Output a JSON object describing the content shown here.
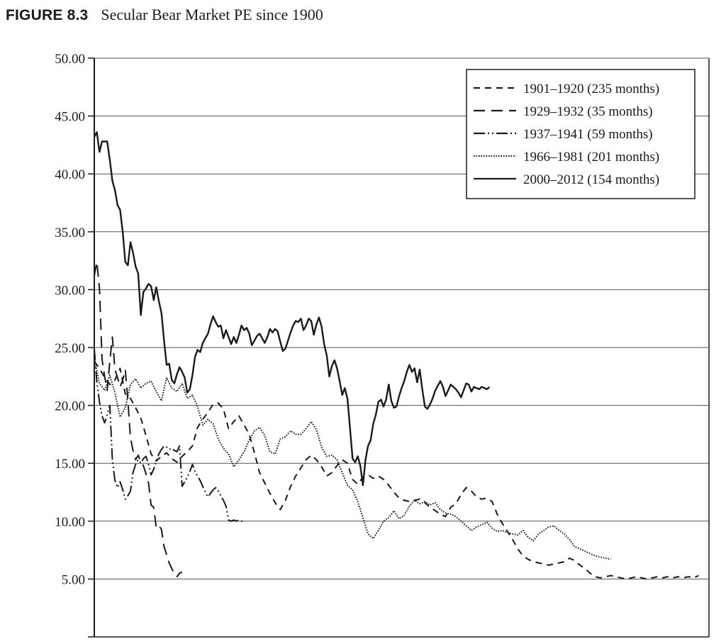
{
  "figure": {
    "label": "FIGURE 8.3",
    "caption": "Secular Bear Market PE since 1900"
  },
  "chart_data": {
    "type": "line",
    "title": "Secular Bear Market PE since 1900",
    "xlabel": "",
    "ylabel": "",
    "xlim": [
      0,
      238
    ],
    "ylim": [
      0,
      50
    ],
    "yticks": [
      0,
      5,
      10,
      15,
      20,
      25,
      30,
      35,
      40,
      45,
      50
    ],
    "ytick_labels": [
      "",
      "5.00",
      "10.00",
      "15.00",
      "20.00",
      "25.00",
      "30.00",
      "35.00",
      "40.00",
      "45.00",
      "50.00"
    ],
    "grid": "horizontal",
    "legend_position": "top-right",
    "series": [
      {
        "name": "1901–1920 (235 months)",
        "style": "dash",
        "x": [
          0,
          2,
          4,
          6,
          8,
          10,
          12,
          14,
          16,
          18,
          20,
          22,
          24,
          26,
          28,
          30,
          32,
          34,
          36,
          38,
          40,
          42,
          44,
          46,
          48,
          50,
          52,
          54,
          56,
          58,
          60,
          62,
          64,
          66,
          68,
          70,
          72,
          74,
          76,
          78,
          80,
          82,
          84,
          86,
          88,
          90,
          92,
          94,
          96,
          98,
          100,
          102,
          104,
          106,
          108,
          110,
          112,
          114,
          116,
          118,
          120,
          122,
          124,
          126,
          128,
          130,
          132,
          134,
          136,
          138,
          140,
          142,
          144,
          146,
          148,
          150,
          152,
          154,
          156,
          158,
          160,
          162,
          164,
          166,
          168,
          170,
          172,
          174,
          176,
          178,
          180,
          182,
          184,
          186,
          188,
          190,
          192,
          194,
          196,
          198,
          200,
          202,
          204,
          206,
          208,
          210,
          212,
          214,
          216,
          218,
          220,
          222,
          224,
          226,
          228,
          230,
          232,
          234
        ],
        "values": [
          23.8,
          23.2,
          22.4,
          21.8,
          22.2,
          23.2,
          21.0,
          20.6,
          19.8,
          18.9,
          17.4,
          15.8,
          15.2,
          15.6,
          15.9,
          15.4,
          15.1,
          15.6,
          16.0,
          16.5,
          18.1,
          18.8,
          19.4,
          20.1,
          20.2,
          19.7,
          18.0,
          18.6,
          19.1,
          18.3,
          17.5,
          15.9,
          14.2,
          13.3,
          12.4,
          11.6,
          11.0,
          11.8,
          13.0,
          13.9,
          14.6,
          15.3,
          15.7,
          15.3,
          14.7,
          13.9,
          14.2,
          14.8,
          15.3,
          15.0,
          13.6,
          13.2,
          13.8,
          14.0,
          13.7,
          13.9,
          13.6,
          13.1,
          12.5,
          12.0,
          11.8,
          11.7,
          11.8,
          11.9,
          11.6,
          11.2,
          10.9,
          10.6,
          10.4,
          11.2,
          11.5,
          12.3,
          12.9,
          12.6,
          12.1,
          11.9,
          12.0,
          11.7,
          10.6,
          9.8,
          9.1,
          8.4,
          7.6,
          7.0,
          6.7,
          6.5,
          6.4,
          6.3,
          6.2,
          6.3,
          6.4,
          6.5,
          6.8,
          6.6,
          6.2,
          5.9,
          5.5,
          5.2,
          5.1,
          5.2,
          5.3,
          5.2,
          5.1,
          5.0,
          5.1,
          5.2,
          5.1,
          5.0,
          5.1,
          5.2,
          5.1,
          5.2,
          5.1,
          5.2,
          5.1,
          5.2,
          5.1,
          5.3
        ]
      },
      {
        "name": "1929–1932 (35 months)",
        "style": "longdash",
        "x": [
          0,
          1,
          2,
          3,
          4,
          5,
          6,
          7,
          8,
          9,
          10,
          11,
          12,
          13,
          14,
          15,
          16,
          17,
          18,
          19,
          20,
          21,
          22,
          23,
          24,
          25,
          26,
          27,
          28,
          29,
          30,
          31,
          32,
          33,
          34
        ],
        "values": [
          31.2,
          32.4,
          30.1,
          24.0,
          22.5,
          21.3,
          23.8,
          25.9,
          23.1,
          22.4,
          21.6,
          22.2,
          23.1,
          20.4,
          17.2,
          16.1,
          15.3,
          15.7,
          15.1,
          14.8,
          14.1,
          13.3,
          11.4,
          11.2,
          9.4,
          9.6,
          9.3,
          7.8,
          7.1,
          6.4,
          5.9,
          5.5,
          5.2,
          5.5,
          5.6
        ]
      },
      {
        "name": "1937–1941 (59 months)",
        "style": "dashdotdot",
        "x": [
          0,
          1,
          2,
          3,
          4,
          5,
          6,
          7,
          8,
          9,
          10,
          11,
          12,
          13,
          14,
          15,
          16,
          17,
          18,
          19,
          20,
          21,
          22,
          23,
          24,
          25,
          26,
          27,
          28,
          29,
          30,
          31,
          32,
          33,
          34,
          35,
          36,
          37,
          38,
          39,
          40,
          41,
          42,
          43,
          44,
          45,
          46,
          47,
          48,
          49,
          50,
          51,
          52,
          53,
          54,
          55,
          56,
          57,
          58
        ],
        "values": [
          24.9,
          22.0,
          20.3,
          19.1,
          18.5,
          19.2,
          20.0,
          15.3,
          13.5,
          12.9,
          13.4,
          12.7,
          11.9,
          12.2,
          12.6,
          14.2,
          14.9,
          15.3,
          15.0,
          15.4,
          15.6,
          14.9,
          14.0,
          14.5,
          15.2,
          15.8,
          16.2,
          16.5,
          16.4,
          16.2,
          16.3,
          16.1,
          16.0,
          16.5,
          13.0,
          13.4,
          13.8,
          14.3,
          14.9,
          14.3,
          13.9,
          13.5,
          13.0,
          12.5,
          12.1,
          12.4,
          12.7,
          12.9,
          12.6,
          12.2,
          11.8,
          11.3,
          10.1,
          10.0,
          10.1,
          10.0,
          10.1,
          10.0,
          10.0
        ]
      },
      {
        "name": "1966–1981 (201 months)",
        "style": "dotted",
        "x": [
          0,
          2,
          4,
          6,
          8,
          10,
          12,
          14,
          16,
          18,
          20,
          22,
          24,
          26,
          28,
          30,
          32,
          34,
          36,
          38,
          40,
          42,
          44,
          46,
          48,
          50,
          52,
          54,
          56,
          58,
          60,
          62,
          64,
          66,
          68,
          70,
          72,
          74,
          76,
          78,
          80,
          82,
          84,
          86,
          88,
          90,
          92,
          94,
          96,
          98,
          100,
          102,
          104,
          106,
          108,
          110,
          112,
          114,
          116,
          118,
          120,
          122,
          124,
          126,
          128,
          130,
          132,
          134,
          136,
          138,
          140,
          142,
          144,
          146,
          148,
          150,
          152,
          154,
          156,
          158,
          160,
          162,
          164,
          166,
          168,
          170,
          172,
          174,
          176,
          178,
          180,
          182,
          184,
          186,
          188,
          190,
          192,
          194,
          196,
          198,
          200
        ],
        "values": [
          24.1,
          21.9,
          21.3,
          22.6,
          21.1,
          19.0,
          19.8,
          21.8,
          22.3,
          21.5,
          21.9,
          22.1,
          21.2,
          20.4,
          22.4,
          21.5,
          21.2,
          21.9,
          20.6,
          20.9,
          19.9,
          18.3,
          18.8,
          18.4,
          17.1,
          16.3,
          15.8,
          14.7,
          15.3,
          16.0,
          17.0,
          17.8,
          18.1,
          17.4,
          16.0,
          15.8,
          17.1,
          17.3,
          17.8,
          17.5,
          17.5,
          18.0,
          18.6,
          17.9,
          16.4,
          15.6,
          15.7,
          15.3,
          14.2,
          13.1,
          12.7,
          11.7,
          10.3,
          8.9,
          8.5,
          9.2,
          10.0,
          10.3,
          10.9,
          10.2,
          10.5,
          11.3,
          11.8,
          11.5,
          11.7,
          11.4,
          11.6,
          11.0,
          10.7,
          10.6,
          10.4,
          10.0,
          9.6,
          9.2,
          9.5,
          9.7,
          9.9,
          9.4,
          9.1,
          9.2,
          9.0,
          8.9,
          8.8,
          9.2,
          8.6,
          8.3,
          8.9,
          9.2,
          9.5,
          9.6,
          9.2,
          8.9,
          8.4,
          7.8,
          7.6,
          7.4,
          7.2,
          7.0,
          6.9,
          6.8,
          6.7
        ]
      },
      {
        "name": "2000–2012 (154 months)",
        "style": "solid",
        "x": [
          0,
          1,
          2,
          3,
          4,
          5,
          6,
          7,
          8,
          9,
          10,
          11,
          12,
          13,
          14,
          15,
          16,
          17,
          18,
          19,
          20,
          21,
          22,
          23,
          24,
          25,
          26,
          27,
          28,
          29,
          30,
          31,
          32,
          33,
          34,
          35,
          36,
          37,
          38,
          39,
          40,
          41,
          42,
          43,
          44,
          45,
          46,
          47,
          48,
          49,
          50,
          51,
          52,
          53,
          54,
          55,
          56,
          57,
          58,
          59,
          60,
          61,
          62,
          63,
          64,
          65,
          66,
          67,
          68,
          69,
          70,
          71,
          72,
          73,
          74,
          75,
          76,
          77,
          78,
          79,
          80,
          81,
          82,
          83,
          84,
          85,
          86,
          87,
          88,
          89,
          90,
          91,
          92,
          93,
          94,
          95,
          96,
          97,
          98,
          99,
          100,
          101,
          102,
          103,
          104,
          105,
          106,
          107,
          108,
          109,
          110,
          111,
          112,
          113,
          114,
          115,
          116,
          117,
          118,
          119,
          120,
          121,
          122,
          123,
          124,
          125,
          126,
          127,
          128,
          129,
          130,
          131,
          132,
          133,
          134,
          135,
          136,
          137,
          138,
          139,
          140,
          141,
          142,
          143,
          144,
          145,
          146,
          147,
          148,
          149,
          150,
          151,
          152,
          153
        ],
        "values": [
          43.2,
          43.6,
          41.9,
          42.8,
          42.8,
          42.8,
          41.2,
          39.4,
          38.6,
          37.3,
          36.9,
          35.0,
          32.4,
          32.1,
          34.1,
          33.2,
          32.0,
          31.4,
          27.8,
          29.8,
          30.1,
          30.5,
          30.3,
          29.1,
          30.2,
          29.0,
          28.0,
          25.6,
          23.5,
          23.6,
          22.2,
          21.9,
          22.7,
          23.3,
          22.9,
          22.4,
          21.1,
          21.4,
          22.6,
          24.2,
          24.8,
          24.6,
          25.4,
          25.8,
          26.2,
          27.0,
          27.7,
          27.2,
          26.8,
          26.9,
          25.8,
          26.5,
          25.9,
          25.3,
          25.9,
          25.4,
          26.1,
          26.9,
          26.5,
          26.7,
          26.2,
          25.2,
          25.6,
          26.0,
          26.2,
          25.8,
          25.4,
          25.9,
          26.6,
          26.3,
          26.6,
          26.4,
          25.5,
          24.7,
          24.9,
          25.6,
          26.3,
          26.9,
          27.3,
          27.2,
          27.5,
          26.5,
          26.9,
          27.5,
          27.3,
          26.1,
          27.0,
          27.6,
          26.8,
          25.3,
          24.3,
          22.5,
          23.4,
          23.9,
          23.2,
          22.1,
          20.9,
          21.5,
          20.6,
          18.1,
          15.4,
          15.1,
          15.6,
          14.8,
          13.1,
          15.3,
          16.5,
          17.0,
          18.4,
          19.2,
          20.3,
          20.5,
          19.9,
          20.5,
          21.8,
          20.4,
          19.8,
          19.9,
          20.8,
          21.5,
          22.1,
          22.9,
          23.5,
          22.9,
          23.2,
          22.0,
          23.1,
          21.4,
          19.9,
          19.7,
          20.1,
          20.6,
          21.3,
          21.7,
          22.1,
          21.6,
          20.8,
          21.3,
          21.8,
          21.6,
          21.4,
          21.1,
          20.7,
          21.3,
          21.9,
          21.8,
          21.2,
          21.6,
          21.5,
          21.4,
          21.6,
          21.5,
          21.4,
          21.6
        ]
      }
    ]
  }
}
